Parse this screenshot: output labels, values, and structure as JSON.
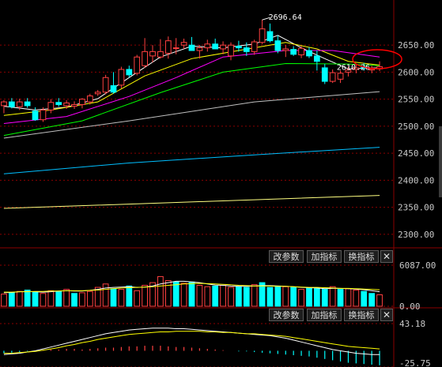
{
  "colors": {
    "background": "#000000",
    "grid": "#8b0000",
    "up": "#ff4040",
    "down": "#00ffff",
    "ma5": "#ffffff",
    "ma10": "#ffff00",
    "ma20": "#ff00ff",
    "ma30": "#00ff00",
    "ma60": "#c0c0c0",
    "ma120": "#00bfff",
    "ma250": "#ffff80",
    "macd_dif": "#ffffff",
    "macd_dea": "#ffff00",
    "highlight_circle": "#ff0000",
    "axis_text": "#c8c8c8"
  },
  "buttons": {
    "volume": {
      "modify_params": "改参数",
      "add_indicator": "加指标",
      "switch_indicator": "换指标",
      "close": "✕"
    },
    "macd": {
      "modify_params": "改参数",
      "add_indicator": "加指标",
      "switch_indicator": "换指标",
      "close": "✕"
    }
  },
  "chart_data": [
    {
      "type": "candlestick",
      "panel": "price",
      "y_ticks": [
        "2650.00",
        "2600.00",
        "2550.00",
        "2500.00",
        "2450.00",
        "2400.00",
        "2350.00",
        "2300.00"
      ],
      "y_tick_values": [
        2650,
        2600,
        2550,
        2500,
        2450,
        2400,
        2350,
        2300
      ],
      "ylim": [
        2278,
        2713
      ],
      "annotations": {
        "high_label": "2696.64",
        "high_value": 2696.64,
        "last_label": "2610.26",
        "last_value": 2610.26,
        "highlight": "last-candle"
      },
      "candles": [
        {
          "o": 2538,
          "h": 2548,
          "l": 2524,
          "c": 2545
        },
        {
          "o": 2545,
          "h": 2552,
          "l": 2533,
          "c": 2536
        },
        {
          "o": 2536,
          "h": 2551,
          "l": 2530,
          "c": 2545
        },
        {
          "o": 2545,
          "h": 2552,
          "l": 2534,
          "c": 2538
        },
        {
          "o": 2528,
          "h": 2535,
          "l": 2510,
          "c": 2512
        },
        {
          "o": 2512,
          "h": 2535,
          "l": 2508,
          "c": 2530
        },
        {
          "o": 2530,
          "h": 2550,
          "l": 2524,
          "c": 2544
        },
        {
          "o": 2544,
          "h": 2552,
          "l": 2536,
          "c": 2540
        },
        {
          "o": 2538,
          "h": 2548,
          "l": 2532,
          "c": 2543
        },
        {
          "o": 2537,
          "h": 2546,
          "l": 2532,
          "c": 2540
        },
        {
          "o": 2540,
          "h": 2552,
          "l": 2533,
          "c": 2550
        },
        {
          "o": 2545,
          "h": 2560,
          "l": 2540,
          "c": 2556
        },
        {
          "o": 2560,
          "h": 2567,
          "l": 2556,
          "c": 2563
        },
        {
          "o": 2563,
          "h": 2595,
          "l": 2559,
          "c": 2590
        },
        {
          "o": 2575,
          "h": 2600,
          "l": 2560,
          "c": 2563
        },
        {
          "o": 2576,
          "h": 2610,
          "l": 2570,
          "c": 2605
        },
        {
          "o": 2605,
          "h": 2612,
          "l": 2590,
          "c": 2595
        },
        {
          "o": 2598,
          "h": 2632,
          "l": 2594,
          "c": 2628
        },
        {
          "o": 2612,
          "h": 2663,
          "l": 2608,
          "c": 2638
        },
        {
          "o": 2630,
          "h": 2650,
          "l": 2618,
          "c": 2638
        },
        {
          "o": 2628,
          "h": 2661,
          "l": 2625,
          "c": 2638
        },
        {
          "o": 2635,
          "h": 2666,
          "l": 2625,
          "c": 2658
        },
        {
          "o": 2644,
          "h": 2663,
          "l": 2633,
          "c": 2645
        },
        {
          "o": 2650,
          "h": 2662,
          "l": 2643,
          "c": 2655
        },
        {
          "o": 2650,
          "h": 2665,
          "l": 2644,
          "c": 2640
        },
        {
          "o": 2640,
          "h": 2650,
          "l": 2625,
          "c": 2645
        },
        {
          "o": 2645,
          "h": 2660,
          "l": 2638,
          "c": 2652
        },
        {
          "o": 2652,
          "h": 2662,
          "l": 2645,
          "c": 2643
        },
        {
          "o": 2643,
          "h": 2657,
          "l": 2633,
          "c": 2650
        },
        {
          "o": 2630,
          "h": 2655,
          "l": 2622,
          "c": 2650
        },
        {
          "o": 2648,
          "h": 2658,
          "l": 2638,
          "c": 2645
        },
        {
          "o": 2645,
          "h": 2655,
          "l": 2630,
          "c": 2638
        },
        {
          "o": 2638,
          "h": 2660,
          "l": 2632,
          "c": 2656
        },
        {
          "o": 2655,
          "h": 2697,
          "l": 2652,
          "c": 2680
        },
        {
          "o": 2675,
          "h": 2690,
          "l": 2655,
          "c": 2658
        },
        {
          "o": 2658,
          "h": 2668,
          "l": 2635,
          "c": 2640
        },
        {
          "o": 2640,
          "h": 2650,
          "l": 2628,
          "c": 2643
        },
        {
          "o": 2642,
          "h": 2648,
          "l": 2630,
          "c": 2633
        },
        {
          "o": 2632,
          "h": 2648,
          "l": 2626,
          "c": 2644
        },
        {
          "o": 2640,
          "h": 2646,
          "l": 2626,
          "c": 2630
        },
        {
          "o": 2630,
          "h": 2640,
          "l": 2603,
          "c": 2620
        },
        {
          "o": 2608,
          "h": 2615,
          "l": 2578,
          "c": 2583
        },
        {
          "o": 2583,
          "h": 2605,
          "l": 2580,
          "c": 2599
        },
        {
          "o": 2587,
          "h": 2603,
          "l": 2580,
          "c": 2598
        },
        {
          "o": 2600,
          "h": 2610,
          "l": 2592,
          "c": 2604
        },
        {
          "o": 2605,
          "h": 2615,
          "l": 2598,
          "c": 2608
        },
        {
          "o": 2610,
          "h": 2617,
          "l": 2603,
          "c": 2607
        },
        {
          "o": 2604,
          "h": 2612,
          "l": 2598,
          "c": 2606
        },
        {
          "o": 2606,
          "h": 2620,
          "l": 2602,
          "c": 2610
        }
      ],
      "ma_lines": [
        {
          "key": "ma5",
          "points": [
            [
              0,
              2537
            ],
            [
              4,
              2530
            ],
            [
              8,
              2535
            ],
            [
              12,
              2551
            ],
            [
              16,
              2590
            ],
            [
              20,
              2628
            ],
            [
              24,
              2648
            ],
            [
              28,
              2645
            ],
            [
              32,
              2652
            ],
            [
              35,
              2668
            ],
            [
              38,
              2645
            ],
            [
              41,
              2625
            ],
            [
              44,
              2606
            ],
            [
              48,
              2608
            ]
          ]
        },
        {
          "key": "ma10",
          "points": [
            [
              0,
              2520
            ],
            [
              6,
              2530
            ],
            [
              12,
              2545
            ],
            [
              18,
              2593
            ],
            [
              24,
              2625
            ],
            [
              30,
              2640
            ],
            [
              36,
              2655
            ],
            [
              40,
              2643
            ],
            [
              44,
              2620
            ],
            [
              48,
              2613
            ]
          ]
        },
        {
          "key": "ma20",
          "points": [
            [
              0,
              2505
            ],
            [
              8,
              2518
            ],
            [
              16,
              2555
            ],
            [
              22,
              2590
            ],
            [
              28,
              2628
            ],
            [
              36,
              2640
            ],
            [
              42,
              2640
            ],
            [
              48,
              2628
            ]
          ]
        },
        {
          "key": "ma30",
          "points": [
            [
              0,
              2483
            ],
            [
              10,
              2510
            ],
            [
              20,
              2562
            ],
            [
              28,
              2600
            ],
            [
              36,
              2616
            ],
            [
              44,
              2615
            ],
            [
              48,
              2612
            ]
          ]
        },
        {
          "key": "ma60",
          "points": [
            [
              0,
              2478
            ],
            [
              16,
              2510
            ],
            [
              32,
              2545
            ],
            [
              48,
              2564
            ]
          ]
        },
        {
          "key": "ma120",
          "points": [
            [
              0,
              2412
            ],
            [
              16,
              2432
            ],
            [
              32,
              2447
            ],
            [
              48,
              2461
            ]
          ]
        },
        {
          "key": "ma250",
          "points": [
            [
              0,
              2348
            ],
            [
              16,
              2356
            ],
            [
              32,
              2364
            ],
            [
              48,
              2372
            ]
          ]
        }
      ]
    },
    {
      "type": "bar",
      "panel": "volume",
      "y_ticks": [
        "6087.00",
        "0.00"
      ],
      "ylim": [
        0,
        6087
      ],
      "values": [
        1800,
        2000,
        2200,
        2400,
        2100,
        1900,
        2300,
        2200,
        2500,
        1900,
        2000,
        2200,
        2800,
        3300,
        2600,
        2500,
        3000,
        2300,
        3100,
        3500,
        4400,
        3800,
        3600,
        3400,
        3600,
        3100,
        2900,
        3000,
        3100,
        2800,
        2900,
        2800,
        3200,
        3500,
        2800,
        3000,
        2900,
        2800,
        2500,
        2700,
        2600,
        2500,
        2900,
        2500,
        2600,
        2400,
        2200,
        1900,
        1700
      ],
      "direction": [
        "u",
        "d",
        "u",
        "d",
        "d",
        "u",
        "u",
        "d",
        "u",
        "d",
        "u",
        "u",
        "u",
        "u",
        "d",
        "u",
        "d",
        "u",
        "u",
        "u",
        "u",
        "u",
        "d",
        "u",
        "d",
        "u",
        "u",
        "d",
        "u",
        "u",
        "d",
        "d",
        "u",
        "d",
        "d",
        "d",
        "u",
        "d",
        "u",
        "d",
        "d",
        "d",
        "u",
        "d",
        "u",
        "u",
        "d",
        "d",
        "u"
      ],
      "ma_lines": [
        {
          "key": "ma5",
          "values": [
            2000,
            2050,
            2150,
            2200,
            2150,
            2100,
            2150,
            2250,
            2300,
            2250,
            2250,
            2350,
            2500,
            2700,
            2800,
            2850,
            2900,
            2800,
            2850,
            3000,
            3300,
            3500,
            3700,
            3700,
            3600,
            3500,
            3300,
            3150,
            3100,
            3000,
            2950,
            2950,
            3000,
            3050,
            3050,
            3000,
            2950,
            2900,
            2800,
            2750,
            2700,
            2600,
            2650,
            2650,
            2600,
            2550,
            2450,
            2300,
            2150
          ]
        },
        {
          "key": "ma10",
          "values": [
            2100,
            2100,
            2150,
            2150,
            2200,
            2200,
            2250,
            2250,
            2300,
            2300,
            2300,
            2350,
            2400,
            2500,
            2600,
            2700,
            2750,
            2800,
            2850,
            2900,
            3000,
            3100,
            3200,
            3300,
            3350,
            3400,
            3350,
            3300,
            3250,
            3200,
            3100,
            3050,
            3000,
            3000,
            3000,
            2950,
            2950,
            2900,
            2850,
            2800,
            2800,
            2750,
            2700,
            2650,
            2650,
            2600,
            2550,
            2500,
            2450
          ]
        }
      ]
    },
    {
      "type": "bar",
      "panel": "macd",
      "y_ticks": [
        "43.18",
        "-25.75"
      ],
      "ylim": [
        -25.75,
        43.18
      ],
      "values": [
        -4,
        -3,
        -2,
        -1,
        -1,
        1,
        2,
        2,
        3,
        3,
        2,
        3,
        4,
        5,
        5,
        6,
        7,
        7,
        8,
        8,
        8,
        7,
        6,
        6,
        5,
        4,
        3,
        2,
        1,
        0,
        -1,
        -1,
        -2,
        -3,
        -4,
        -5,
        -6,
        -7,
        -8,
        -9,
        -11,
        -13,
        -15,
        -17,
        -19,
        -20,
        -21,
        -22,
        -23
      ],
      "lines": [
        {
          "key": "macd_dif",
          "values": [
            -6,
            -5,
            -4,
            -2,
            0,
            3,
            6,
            9,
            12,
            15,
            18,
            21,
            24,
            27,
            29,
            31,
            33,
            34,
            35,
            36,
            36,
            36,
            35,
            35,
            34,
            33,
            32,
            31,
            30,
            29,
            28,
            27,
            26,
            25,
            24,
            22,
            20,
            17,
            14,
            11,
            8,
            5,
            2,
            0,
            -2,
            -4,
            -5,
            -6,
            -6
          ]
        },
        {
          "key": "macd_dea",
          "values": [
            -4,
            -4,
            -3,
            -2,
            -1,
            1,
            3,
            5,
            8,
            10,
            13,
            15,
            18,
            20,
            22,
            24,
            26,
            27,
            28,
            29,
            30,
            30,
            31,
            31,
            31,
            31,
            30,
            30,
            29,
            29,
            28,
            27,
            27,
            26,
            25,
            24,
            23,
            21,
            19,
            17,
            15,
            13,
            11,
            9,
            7,
            6,
            5,
            4,
            3
          ]
        }
      ]
    }
  ]
}
